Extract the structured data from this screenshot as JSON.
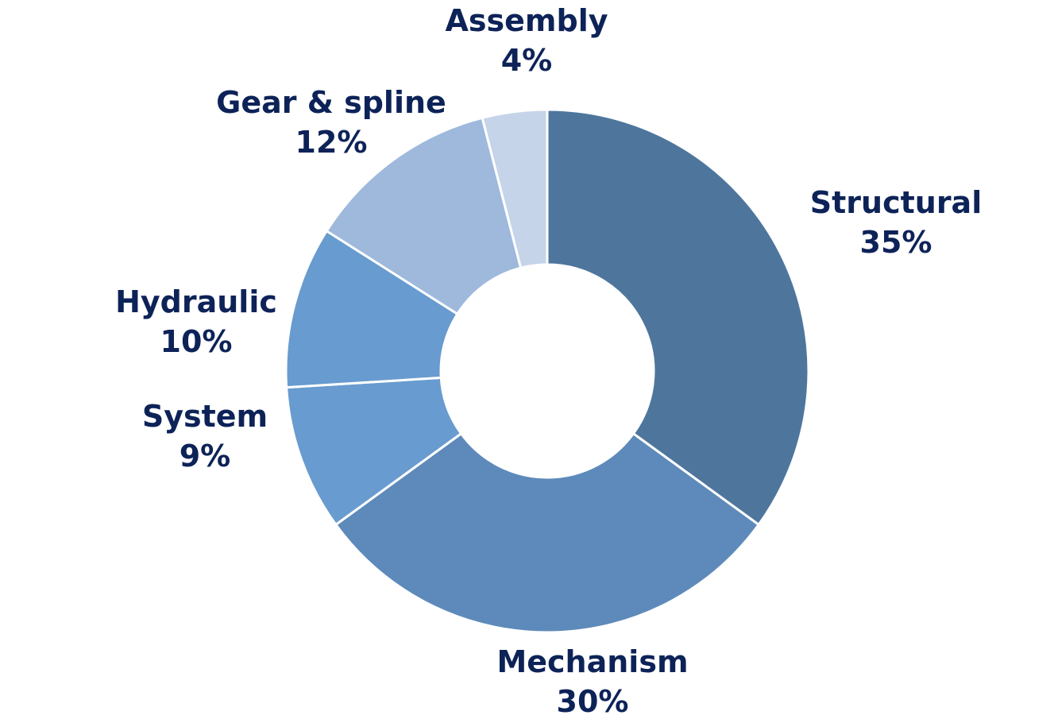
{
  "chart_data": {
    "type": "pie",
    "donut": true,
    "label_color": "#0d2358",
    "slices": [
      {
        "label": "Structural",
        "value": 35,
        "pct_label": "35%",
        "color": "#4e769d"
      },
      {
        "label": "Mechanism",
        "value": 30,
        "pct_label": "30%",
        "color": "#5d8aba"
      },
      {
        "label": "System",
        "value": 9,
        "pct_label": "9%",
        "color": "#689bcf"
      },
      {
        "label": "Hydraulic",
        "value": 10,
        "pct_label": "10%",
        "color": "#689bcf"
      },
      {
        "label": "Gear & spline",
        "value": 12,
        "pct_label": "12%",
        "color": "#9eb9dc"
      },
      {
        "label": "Assembly",
        "value": 4,
        "pct_label": "4%",
        "color": "#c5d4e8"
      }
    ]
  }
}
